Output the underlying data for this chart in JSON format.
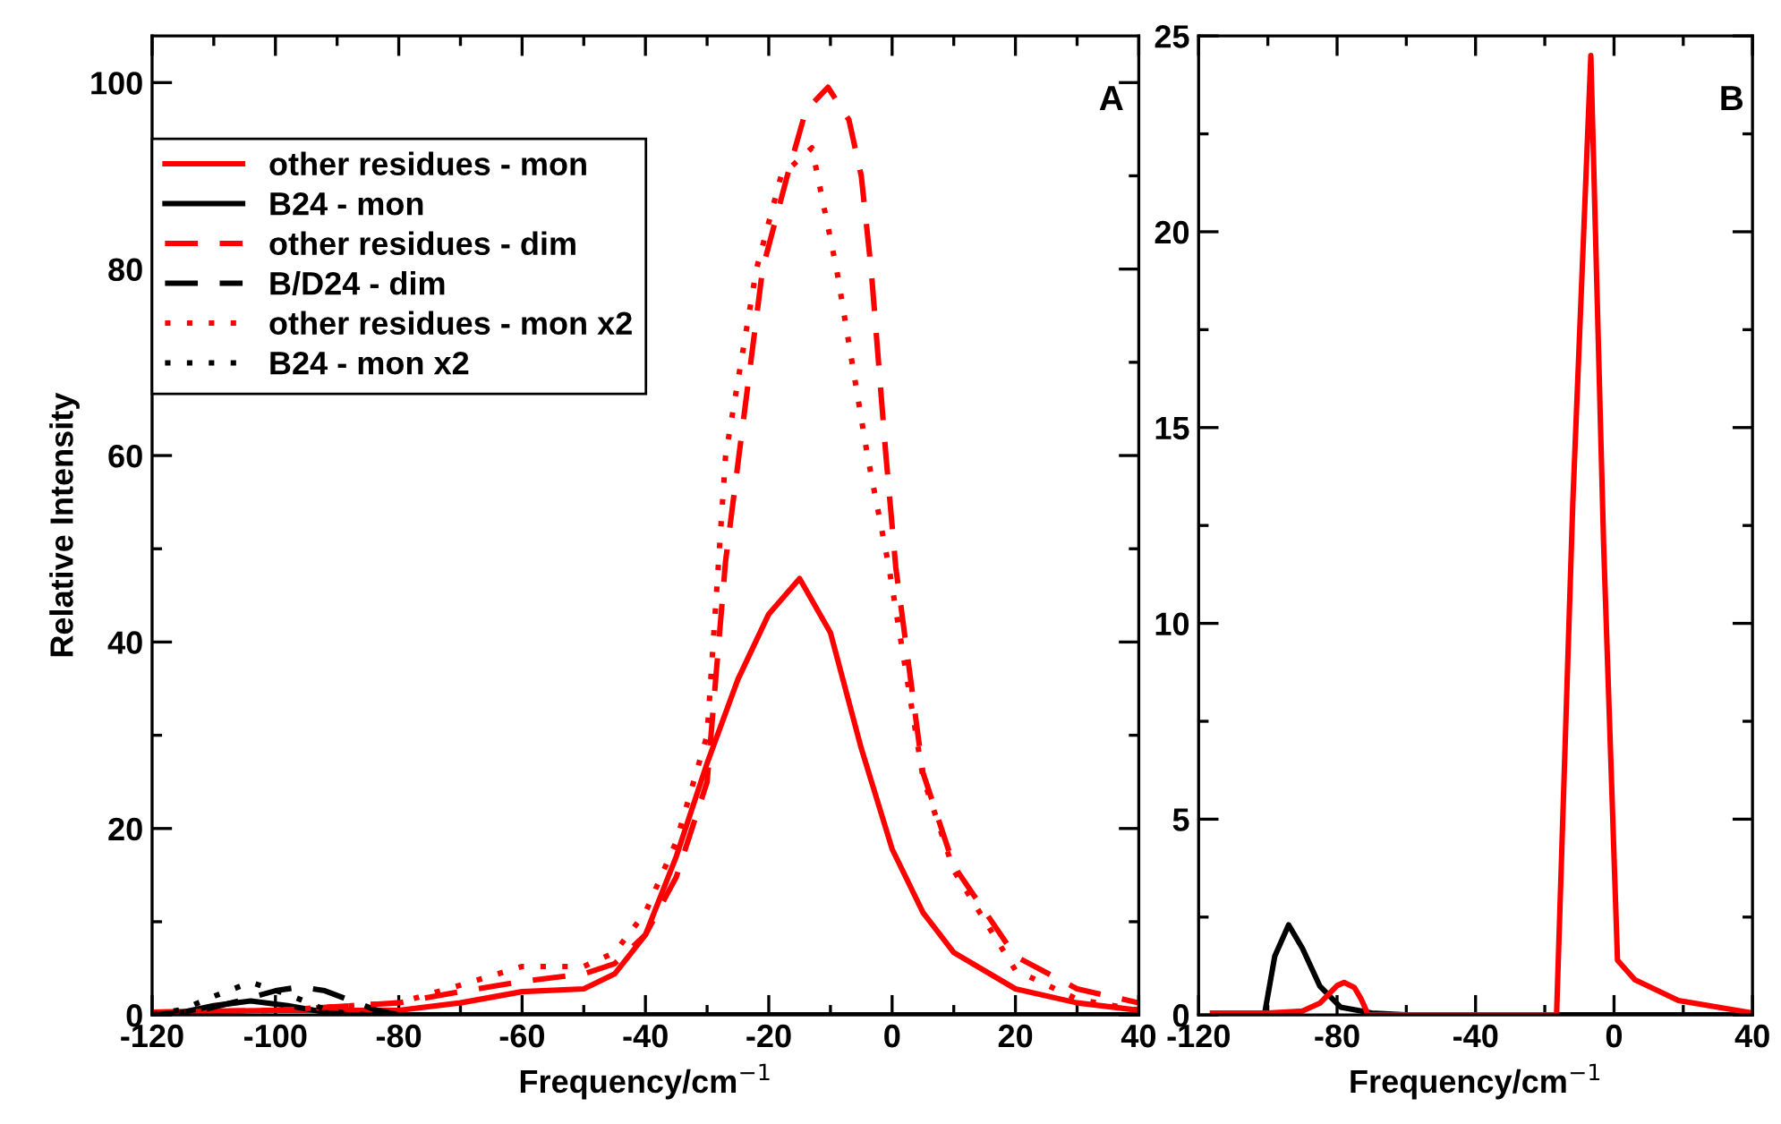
{
  "chart_data": [
    {
      "type": "line",
      "xlabel": "Frequency/cm$^{−1}$",
      "ylabel": "Relative Intensity",
      "annotations": [
        "A"
      ],
      "legend": "top left",
      "xlim": [
        -120,
        40
      ],
      "xticks": [
        -120,
        {
          "value": -110,
          "label": null
        },
        -100,
        {
          "value": -90,
          "label": null
        },
        -80,
        {
          "value": -70,
          "label": null
        },
        -60,
        {
          "value": -50,
          "label": null
        },
        -40,
        {
          "value": -30,
          "label": null
        },
        -20,
        {
          "value": -10,
          "label": null
        },
        0,
        {
          "value": 10,
          "label": null
        },
        20,
        {
          "value": 30,
          "label": null
        },
        40
      ],
      "ylim": [
        0,
        105
      ],
      "yticks": [
        0,
        {
          "value": 10,
          "label": null
        },
        20,
        {
          "value": 30,
          "label": null
        },
        40,
        {
          "value": 50,
          "label": null
        },
        60,
        {
          "value": 70,
          "label": null
        },
        80,
        {
          "value": 90,
          "label": null
        },
        100
      ],
      "series": [
        {
          "name": "other residues - mon",
          "color": "#ff0000",
          "line_style": "solid",
          "x": [
            -120,
            -100,
            -90,
            -80,
            -70,
            -60,
            -50,
            -45,
            -40,
            -35,
            -30,
            -25,
            -20,
            -15,
            -10,
            -5,
            0,
            5,
            10,
            20,
            30,
            40
          ],
          "values": [
            0.3,
            0.5,
            0.5,
            0.5,
            1.3,
            2.5,
            2.8,
            4.4,
            8.6,
            17,
            27,
            36,
            43,
            46.8,
            41,
            28.6,
            17.8,
            11,
            6.7,
            2.8,
            1.3,
            0.5
          ]
        },
        {
          "name": "B24 - mon",
          "color": "#000000",
          "line_style": "solid",
          "x": [
            -120,
            -115,
            -110,
            -104,
            -98,
            -92,
            -88,
            -80,
            0,
            40
          ],
          "values": [
            0,
            0.3,
            1,
            1.5,
            1,
            0.3,
            0,
            0,
            0,
            0
          ]
        },
        {
          "name": "other residues - dim",
          "color": "#ff0000",
          "line_style": "dashed",
          "x": [
            -120,
            -100,
            -80,
            -70,
            -60,
            -50,
            -45,
            -40,
            -35,
            -30,
            -27,
            -21,
            -17,
            -14,
            -10.4,
            -7,
            -5,
            -3.4,
            -1,
            0.6,
            5,
            10,
            20,
            30,
            40
          ],
          "values": [
            0.3,
            0.5,
            1.3,
            2.5,
            3.6,
            4.4,
            5.5,
            8.6,
            14.8,
            25,
            48.7,
            80,
            90,
            97,
            99.5,
            96,
            90,
            80,
            60,
            48,
            26,
            16,
            6.3,
            2.8,
            1.3
          ]
        },
        {
          "name": "B/D24 - dim",
          "color": "#000000",
          "line_style": "dashed",
          "x": [
            -120,
            -112,
            -106,
            -100,
            -96,
            -92,
            -88,
            -84,
            -80
          ],
          "values": [
            0,
            0.5,
            1.5,
            2.6,
            3,
            2.6,
            1.6,
            0.6,
            0
          ]
        },
        {
          "name": "other residues - mon x2",
          "color": "#ff0000",
          "line_style": "dotted",
          "x": [
            -120,
            -100,
            -80,
            -70,
            -60,
            -50,
            -45,
            -40,
            -35,
            -30,
            -27,
            -22,
            -18,
            -13,
            -9,
            -4,
            -0.5,
            5,
            10,
            20,
            30,
            40
          ],
          "values": [
            0.3,
            0.5,
            1.3,
            3.2,
            5.2,
            5.2,
            6.7,
            11,
            18.6,
            30,
            60,
            80,
            90,
            93,
            80,
            60,
            48,
            25.5,
            15.5,
            4.8,
            1.7,
            0.5
          ]
        },
        {
          "name": "B24 - mon x2",
          "color": "#000000",
          "line_style": "dotted",
          "x": [
            -120,
            -115,
            -110,
            -104,
            -98,
            -92,
            -88,
            -84
          ],
          "values": [
            0,
            0.6,
            2,
            3.5,
            2.2,
            0.6,
            0.1,
            0
          ]
        }
      ]
    },
    {
      "type": "line",
      "xlabel": "Frequency/cm$^{−1}$",
      "annotations": [
        "B"
      ],
      "xlim": [
        -120,
        40
      ],
      "xticks": [
        -120,
        {
          "value": -100,
          "label": null
        },
        -80,
        {
          "value": -60,
          "label": null
        },
        -40,
        {
          "value": -20,
          "label": null
        },
        0,
        {
          "value": 20,
          "label": null
        },
        40
      ],
      "ylim": [
        0,
        25
      ],
      "yticks": [
        0,
        {
          "value": 2.5,
          "label": null
        },
        5,
        {
          "value": 7.5,
          "label": null
        },
        10,
        {
          "value": 12.5,
          "label": null
        },
        15,
        {
          "value": 17.5,
          "label": null
        },
        20,
        {
          "value": 22.5,
          "label": null
        },
        25
      ],
      "series": [
        {
          "color": "#000000",
          "line_style": "solid",
          "x": [
            -101,
            -98,
            -94,
            -90,
            -85,
            -79,
            -70,
            -60,
            -50,
            0,
            40
          ],
          "values": [
            0,
            1.5,
            2.3,
            1.7,
            0.74,
            0.2,
            0.05,
            0,
            0,
            0,
            0
          ]
        },
        {
          "color": "#ff0000",
          "line_style": "solid",
          "x": [
            -116,
            -100,
            -90,
            -85,
            -80,
            -78,
            -75,
            -73,
            -71,
            -40,
            -16.6,
            -11.9,
            -6.7,
            -3,
            1,
            6,
            18.6,
            40
          ],
          "values": [
            0.05,
            0.05,
            0.1,
            0.3,
            0.75,
            0.83,
            0.7,
            0.4,
            0,
            0,
            0,
            13.1,
            24.5,
            12,
            1.4,
            0.9,
            0.37,
            0.05
          ]
        }
      ]
    }
  ]
}
